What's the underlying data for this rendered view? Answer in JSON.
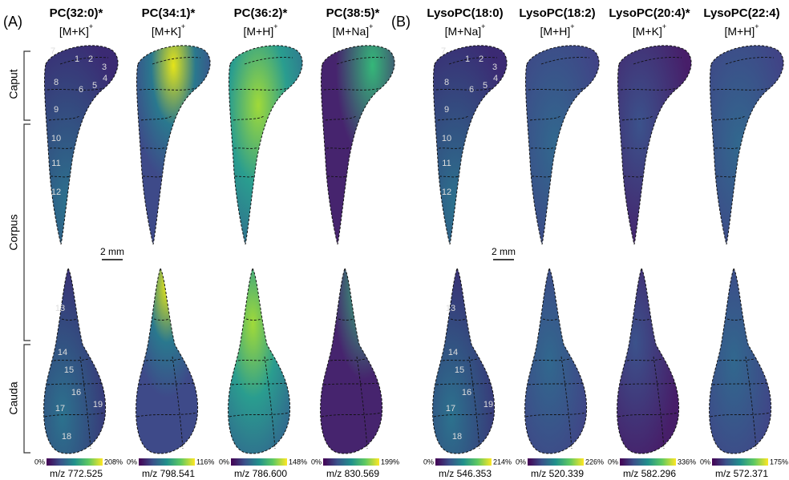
{
  "panels": [
    "(A)",
    "(B)"
  ],
  "columns": [
    {
      "lipid": "PC(32:0)*",
      "adduct": "[M+K]",
      "charge": "+",
      "scale_min": "0%",
      "scale_max": "208%",
      "mz": "m/z 772.525"
    },
    {
      "lipid": "PC(34:1)*",
      "adduct": "[M+K]",
      "charge": "+",
      "scale_min": "0%",
      "scale_max": "116%",
      "mz": "m/z 798.541"
    },
    {
      "lipid": "PC(36:2)*",
      "adduct": "[M+H]",
      "charge": "+",
      "scale_min": "0%",
      "scale_max": "148%",
      "mz": "m/z 786.600"
    },
    {
      "lipid": "PC(38:5)*",
      "adduct": "[M+Na]",
      "charge": "+",
      "scale_min": "0%",
      "scale_max": "199%",
      "mz": "m/z 830.569"
    },
    {
      "lipid": "LysoPC(18:0)",
      "adduct": "[M+Na]",
      "charge": "+",
      "scale_min": "0%",
      "scale_max": "214%",
      "mz": "m/z 546.353"
    },
    {
      "lipid": "LysoPC(18:2)",
      "adduct": "[M+H]",
      "charge": "+",
      "scale_min": "0%",
      "scale_max": "226%",
      "mz": "m/z 520.339"
    },
    {
      "lipid": "LysoPC(20:4)*",
      "adduct": "[M+K]",
      "charge": "+",
      "scale_min": "0%",
      "scale_max": "336%",
      "mz": "m/z 582.296"
    },
    {
      "lipid": "LysoPC(22:4)",
      "adduct": "[M+H]",
      "charge": "+",
      "scale_min": "0%",
      "scale_max": "175%",
      "mz": "m/z 572.371"
    }
  ],
  "regions": [
    "Caput",
    "Corpus",
    "Cauda"
  ],
  "scale_bar": "2 mm",
  "segments": [
    "1",
    "2",
    "3",
    "4",
    "5",
    "6",
    "7",
    "8",
    "9",
    "10",
    "11",
    "12",
    "13",
    "14",
    "15",
    "16",
    "17",
    "18",
    "19"
  ]
}
